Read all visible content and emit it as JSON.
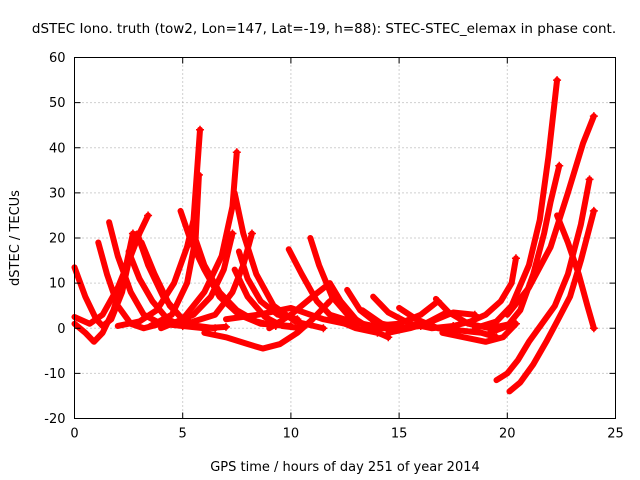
{
  "chart_data": {
    "type": "line",
    "title": "dSTEC Iono. truth (tow2, Lon=147, Lat=-19, h=88): STEC-STEC_elemax in phase cont.",
    "xlabel": "GPS time / hours of day 251 of year 2014",
    "ylabel": "dSTEC  / TECUs",
    "xlim": [
      0,
      25
    ],
    "ylim": [
      -20,
      60
    ],
    "xticks": [
      0,
      5,
      10,
      15,
      20,
      25
    ],
    "yticks": [
      -20,
      -10,
      0,
      10,
      20,
      30,
      40,
      50,
      60
    ],
    "grid": true,
    "color": "#ff0000",
    "marker": "plus",
    "series": [
      {
        "values": [
          [
            0.0,
            13.5
          ],
          [
            0.5,
            7
          ],
          [
            1.0,
            2
          ],
          [
            1.3,
            0.5
          ],
          [
            1.7,
            2
          ],
          [
            2.2,
            8
          ],
          [
            2.6,
            17
          ]
        ]
      },
      {
        "values": [
          [
            0.0,
            1
          ],
          [
            0.5,
            -1
          ],
          [
            0.9,
            -3
          ],
          [
            1.3,
            -1
          ],
          [
            1.8,
            4
          ],
          [
            2.3,
            12
          ],
          [
            2.7,
            21
          ]
        ]
      },
      {
        "values": [
          [
            0.0,
            2.5
          ],
          [
            0.7,
            1
          ],
          [
            1.3,
            3
          ],
          [
            2.0,
            9
          ],
          [
            2.6,
            16
          ],
          [
            3.0,
            21
          ],
          [
            3.4,
            25
          ]
        ]
      },
      {
        "values": [
          [
            1.1,
            19
          ],
          [
            1.5,
            12
          ],
          [
            2.0,
            5
          ],
          [
            2.6,
            1
          ],
          [
            3.2,
            0
          ],
          [
            4.0,
            1
          ]
        ]
      },
      {
        "values": [
          [
            1.6,
            23.5
          ],
          [
            2.0,
            16
          ],
          [
            2.6,
            8
          ],
          [
            3.2,
            3
          ],
          [
            4.0,
            1
          ],
          [
            5.0,
            0.5
          ]
        ]
      },
      {
        "values": [
          [
            2.5,
            17
          ],
          [
            3.0,
            11
          ],
          [
            3.6,
            6
          ],
          [
            4.3,
            2
          ],
          [
            5.0,
            0.5
          ],
          [
            6.0,
            0
          ]
        ]
      },
      {
        "values": [
          [
            2.9,
            21
          ],
          [
            3.4,
            14
          ],
          [
            4.1,
            7
          ],
          [
            4.9,
            2.5
          ],
          [
            5.7,
            0.5
          ],
          [
            6.5,
            0
          ]
        ]
      },
      {
        "values": [
          [
            3.1,
            19
          ],
          [
            3.7,
            12
          ],
          [
            4.4,
            5
          ],
          [
            5.2,
            1
          ],
          [
            6.0,
            0
          ],
          [
            7.0,
            0.3
          ]
        ]
      },
      {
        "values": [
          [
            2.0,
            0.5
          ],
          [
            3.0,
            1.5
          ],
          [
            3.8,
            4
          ],
          [
            4.6,
            10
          ],
          [
            5.2,
            18
          ],
          [
            5.5,
            24
          ],
          [
            5.8,
            44
          ]
        ]
      },
      {
        "values": [
          [
            3.5,
            0.5
          ],
          [
            4.5,
            3
          ],
          [
            5.2,
            10
          ],
          [
            5.6,
            20
          ],
          [
            5.75,
            34
          ]
        ]
      },
      {
        "values": [
          [
            4.9,
            26
          ],
          [
            5.4,
            19
          ],
          [
            6.0,
            13
          ],
          [
            6.7,
            7
          ],
          [
            7.6,
            3
          ],
          [
            8.6,
            1
          ],
          [
            10.0,
            0.5
          ]
        ]
      },
      {
        "values": [
          [
            5.5,
            21
          ],
          [
            6.0,
            14
          ],
          [
            6.7,
            8
          ],
          [
            7.5,
            4
          ],
          [
            8.4,
            1.5
          ],
          [
            9.3,
            0.5
          ]
        ]
      },
      {
        "values": [
          [
            4.5,
            1
          ],
          [
            5.5,
            3
          ],
          [
            6.3,
            7
          ],
          [
            6.9,
            13
          ],
          [
            7.3,
            21
          ]
        ]
      },
      {
        "values": [
          [
            4.0,
            0
          ],
          [
            5.0,
            2
          ],
          [
            6.0,
            8
          ],
          [
            6.8,
            16
          ],
          [
            7.3,
            27
          ],
          [
            7.5,
            39
          ]
        ]
      },
      {
        "values": [
          [
            7.4,
            30
          ],
          [
            7.8,
            21
          ],
          [
            8.4,
            12
          ],
          [
            9.2,
            5
          ],
          [
            10.2,
            1.5
          ],
          [
            11.5,
            0
          ]
        ]
      },
      {
        "values": [
          [
            7.4,
            13
          ],
          [
            8.0,
            7
          ],
          [
            8.8,
            2.5
          ],
          [
            9.6,
            0.5
          ],
          [
            10.5,
            0
          ]
        ]
      },
      {
        "values": [
          [
            7.6,
            17
          ],
          [
            8.0,
            11
          ],
          [
            8.6,
            6
          ],
          [
            9.4,
            3
          ],
          [
            10.3,
            2
          ]
        ]
      },
      {
        "values": [
          [
            5.5,
            1.5
          ],
          [
            6.5,
            3
          ],
          [
            7.3,
            8
          ],
          [
            7.8,
            14
          ],
          [
            8.2,
            21
          ]
        ]
      },
      {
        "values": [
          [
            6.0,
            -1
          ],
          [
            7.0,
            -2
          ],
          [
            8.0,
            -3.5
          ],
          [
            8.7,
            -4.5
          ],
          [
            9.5,
            -3.5
          ],
          [
            10.3,
            -1
          ],
          [
            11.0,
            2
          ],
          [
            11.8,
            6
          ]
        ]
      },
      {
        "values": [
          [
            9.0,
            0
          ],
          [
            10.0,
            3
          ],
          [
            11.0,
            7
          ],
          [
            11.8,
            10
          ],
          [
            12.3,
            6
          ],
          [
            13.0,
            2
          ],
          [
            13.8,
            -0.5
          ],
          [
            14.5,
            -2
          ]
        ]
      },
      {
        "values": [
          [
            9.9,
            17.5
          ],
          [
            10.5,
            12
          ],
          [
            11.2,
            6
          ],
          [
            12.0,
            2
          ],
          [
            13.0,
            0
          ],
          [
            14.0,
            -1
          ]
        ]
      },
      {
        "values": [
          [
            10.9,
            20
          ],
          [
            11.3,
            14
          ],
          [
            11.9,
            7
          ],
          [
            12.8,
            2
          ],
          [
            13.8,
            0
          ],
          [
            14.8,
            0
          ]
        ]
      },
      {
        "values": [
          [
            7.0,
            2
          ],
          [
            8.5,
            3
          ],
          [
            10.0,
            4.5
          ],
          [
            11.5,
            2
          ],
          [
            13.0,
            0.5
          ]
        ]
      },
      {
        "values": [
          [
            12.6,
            8.5
          ],
          [
            13.2,
            4
          ],
          [
            14.0,
            1
          ],
          [
            15.0,
            0
          ],
          [
            16.0,
            0.5
          ]
        ]
      },
      {
        "values": [
          [
            13.3,
            4
          ],
          [
            14.2,
            1
          ],
          [
            15.2,
            0
          ],
          [
            16.2,
            1
          ],
          [
            17.2,
            3.5
          ]
        ]
      },
      {
        "values": [
          [
            13.8,
            7
          ],
          [
            14.5,
            3.5
          ],
          [
            15.5,
            1
          ],
          [
            16.5,
            0
          ],
          [
            17.5,
            0.5
          ]
        ]
      },
      {
        "values": [
          [
            11.8,
            3
          ],
          [
            12.8,
            1.5
          ],
          [
            13.8,
            0.5
          ],
          [
            15.0,
            1
          ],
          [
            16.0,
            3
          ],
          [
            16.8,
            6
          ]
        ]
      },
      {
        "values": [
          [
            14.5,
            -1
          ],
          [
            15.5,
            0
          ],
          [
            16.5,
            1.5
          ],
          [
            17.5,
            3.5
          ],
          [
            18.5,
            3
          ]
        ]
      },
      {
        "values": [
          [
            15.0,
            4.5
          ],
          [
            15.8,
            2
          ],
          [
            16.8,
            0
          ],
          [
            17.8,
            -0.5
          ],
          [
            18.8,
            -1
          ],
          [
            19.5,
            -2
          ]
        ]
      },
      {
        "values": [
          [
            16.7,
            6.5
          ],
          [
            17.3,
            3.5
          ],
          [
            18.2,
            1
          ],
          [
            19.2,
            0
          ],
          [
            20.2,
            1
          ]
        ]
      },
      {
        "values": [
          [
            17.0,
            -1
          ],
          [
            18.0,
            -2
          ],
          [
            19.0,
            -3
          ],
          [
            19.8,
            -2
          ],
          [
            20.4,
            1
          ]
        ]
      },
      {
        "values": [
          [
            17.5,
            0.5
          ],
          [
            18.3,
            1.5
          ],
          [
            19.0,
            3
          ],
          [
            19.7,
            6
          ],
          [
            20.2,
            10
          ],
          [
            20.4,
            15.5
          ]
        ]
      },
      {
        "values": [
          [
            18.5,
            0
          ],
          [
            19.5,
            1.5
          ],
          [
            20.2,
            5
          ],
          [
            21.0,
            14
          ],
          [
            21.5,
            24
          ],
          [
            21.9,
            38
          ],
          [
            22.3,
            55
          ]
        ]
      },
      {
        "values": [
          [
            19.2,
            -1
          ],
          [
            20.0,
            0.5
          ],
          [
            20.6,
            4
          ],
          [
            21.2,
            12
          ],
          [
            21.7,
            21
          ],
          [
            22.0,
            28
          ],
          [
            22.4,
            36
          ]
        ]
      },
      {
        "values": [
          [
            20.0,
            3
          ],
          [
            21.0,
            9
          ],
          [
            22.0,
            18
          ],
          [
            22.8,
            30
          ],
          [
            23.5,
            41
          ],
          [
            24.0,
            47
          ]
        ]
      },
      {
        "values": [
          [
            19.5,
            -11.5
          ],
          [
            20.0,
            -10
          ],
          [
            20.5,
            -7
          ],
          [
            21.0,
            -3
          ],
          [
            21.6,
            1
          ],
          [
            22.2,
            5
          ],
          [
            22.8,
            12
          ],
          [
            23.4,
            23
          ],
          [
            23.8,
            33
          ]
        ]
      },
      {
        "values": [
          [
            20.1,
            -14
          ],
          [
            20.6,
            -12
          ],
          [
            21.2,
            -8
          ],
          [
            21.8,
            -3
          ],
          [
            22.3,
            1.5
          ],
          [
            22.9,
            7
          ],
          [
            23.4,
            15
          ],
          [
            24.0,
            26
          ]
        ]
      },
      {
        "values": [
          [
            22.3,
            25
          ],
          [
            22.8,
            19
          ],
          [
            23.3,
            12
          ],
          [
            23.7,
            5
          ],
          [
            24.0,
            0
          ]
        ]
      }
    ]
  }
}
